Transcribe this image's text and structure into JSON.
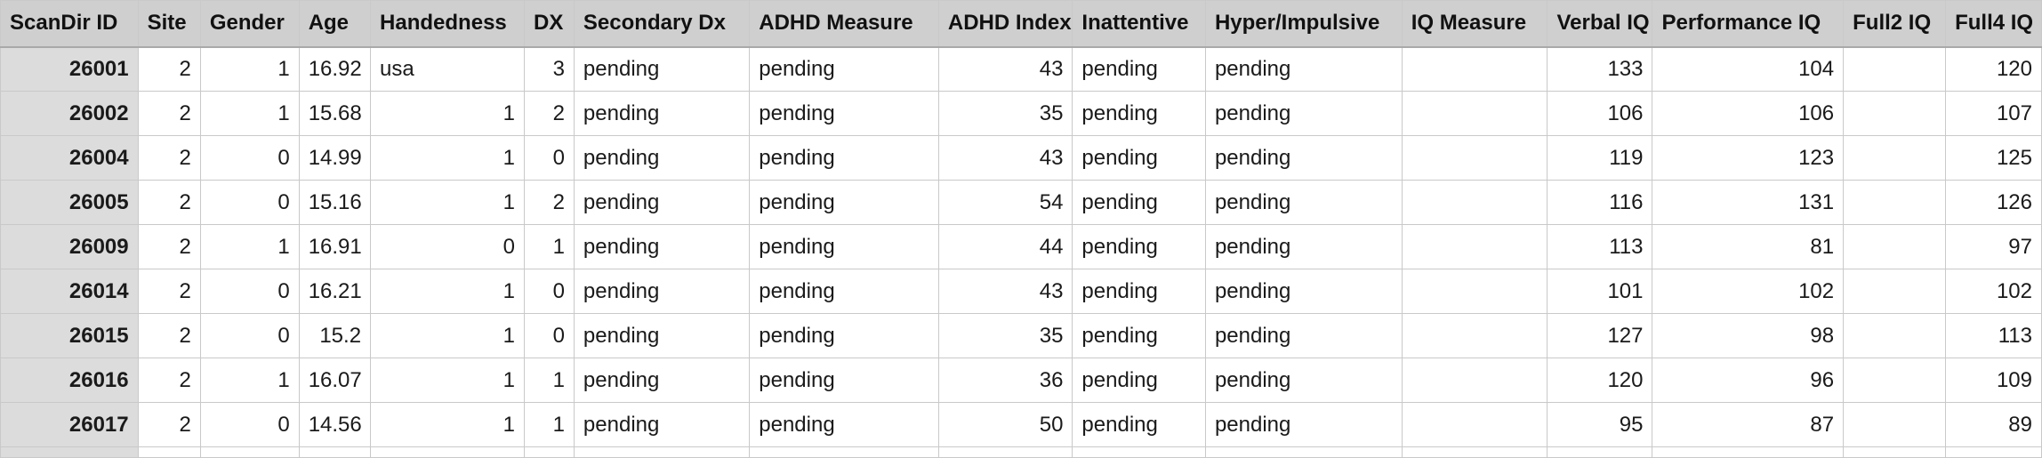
{
  "columns": [
    "ScanDir ID",
    "Site",
    "Gender",
    "Age",
    "Handedness",
    "DX",
    "Secondary Dx",
    "ADHD Measure",
    "ADHD Index",
    "Inattentive",
    "Hyper/Impulsive",
    "IQ Measure",
    "Verbal IQ",
    "Performance IQ",
    "Full2 IQ",
    "Full4 IQ"
  ],
  "rows": [
    [
      "26001",
      "2",
      "1",
      "16.92",
      "usa",
      "3",
      "pending",
      "pending",
      "43",
      "pending",
      "pending",
      "",
      "133",
      "104",
      "",
      "120"
    ],
    [
      "26002",
      "2",
      "1",
      "15.68",
      "1",
      "2",
      "pending",
      "pending",
      "35",
      "pending",
      "pending",
      "",
      "106",
      "106",
      "",
      "107"
    ],
    [
      "26004",
      "2",
      "0",
      "14.99",
      "1",
      "0",
      "pending",
      "pending",
      "43",
      "pending",
      "pending",
      "",
      "119",
      "123",
      "",
      "125"
    ],
    [
      "26005",
      "2",
      "0",
      "15.16",
      "1",
      "2",
      "pending",
      "pending",
      "54",
      "pending",
      "pending",
      "",
      "116",
      "131",
      "",
      "126"
    ],
    [
      "26009",
      "2",
      "1",
      "16.91",
      "0",
      "1",
      "pending",
      "pending",
      "44",
      "pending",
      "pending",
      "",
      "113",
      "81",
      "",
      "97"
    ],
    [
      "26014",
      "2",
      "0",
      "16.21",
      "1",
      "0",
      "pending",
      "pending",
      "43",
      "pending",
      "pending",
      "",
      "101",
      "102",
      "",
      "102"
    ],
    [
      "26015",
      "2",
      "0",
      "15.2",
      "1",
      "0",
      "pending",
      "pending",
      "35",
      "pending",
      "pending",
      "",
      "127",
      "98",
      "",
      "113"
    ],
    [
      "26016",
      "2",
      "1",
      "16.07",
      "1",
      "1",
      "pending",
      "pending",
      "36",
      "pending",
      "pending",
      "",
      "120",
      "96",
      "",
      "109"
    ],
    [
      "26017",
      "2",
      "0",
      "14.56",
      "1",
      "1",
      "pending",
      "pending",
      "50",
      "pending",
      "pending",
      "",
      "95",
      "87",
      "",
      "89"
    ]
  ]
}
